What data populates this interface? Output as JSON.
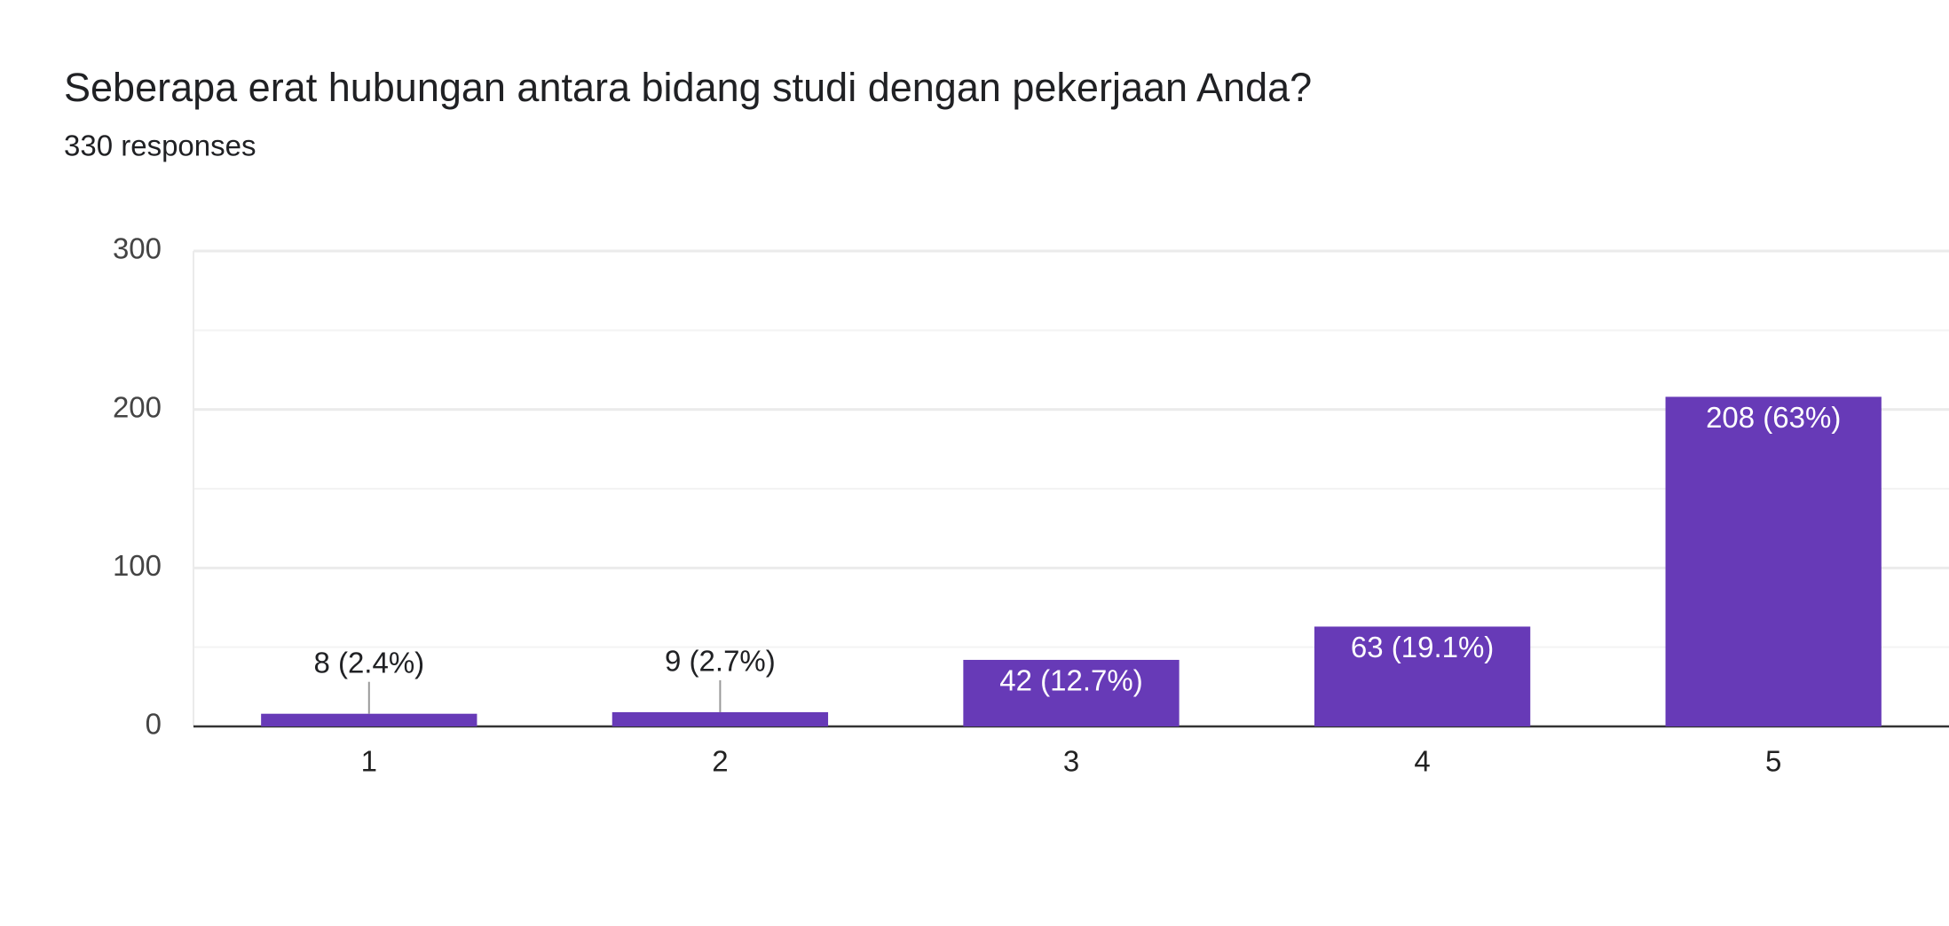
{
  "chart_data": {
    "type": "bar",
    "title": "Seberapa erat hubungan antara bidang studi dengan pekerjaan Anda?",
    "subtitle": "330 responses",
    "categories": [
      "1",
      "2",
      "3",
      "4",
      "5"
    ],
    "values": [
      8,
      9,
      42,
      63,
      208
    ],
    "value_labels": [
      "8 (2.4%)",
      "9 (2.7%)",
      "42 (12.7%)",
      "63 (19.1%)",
      "208 (63%)"
    ],
    "color": "#673ab7",
    "ylim": [
      0,
      300
    ],
    "yticks": [
      0,
      100,
      200,
      300
    ],
    "minor_gridlines": [
      50,
      150,
      250
    ],
    "grid": true
  }
}
